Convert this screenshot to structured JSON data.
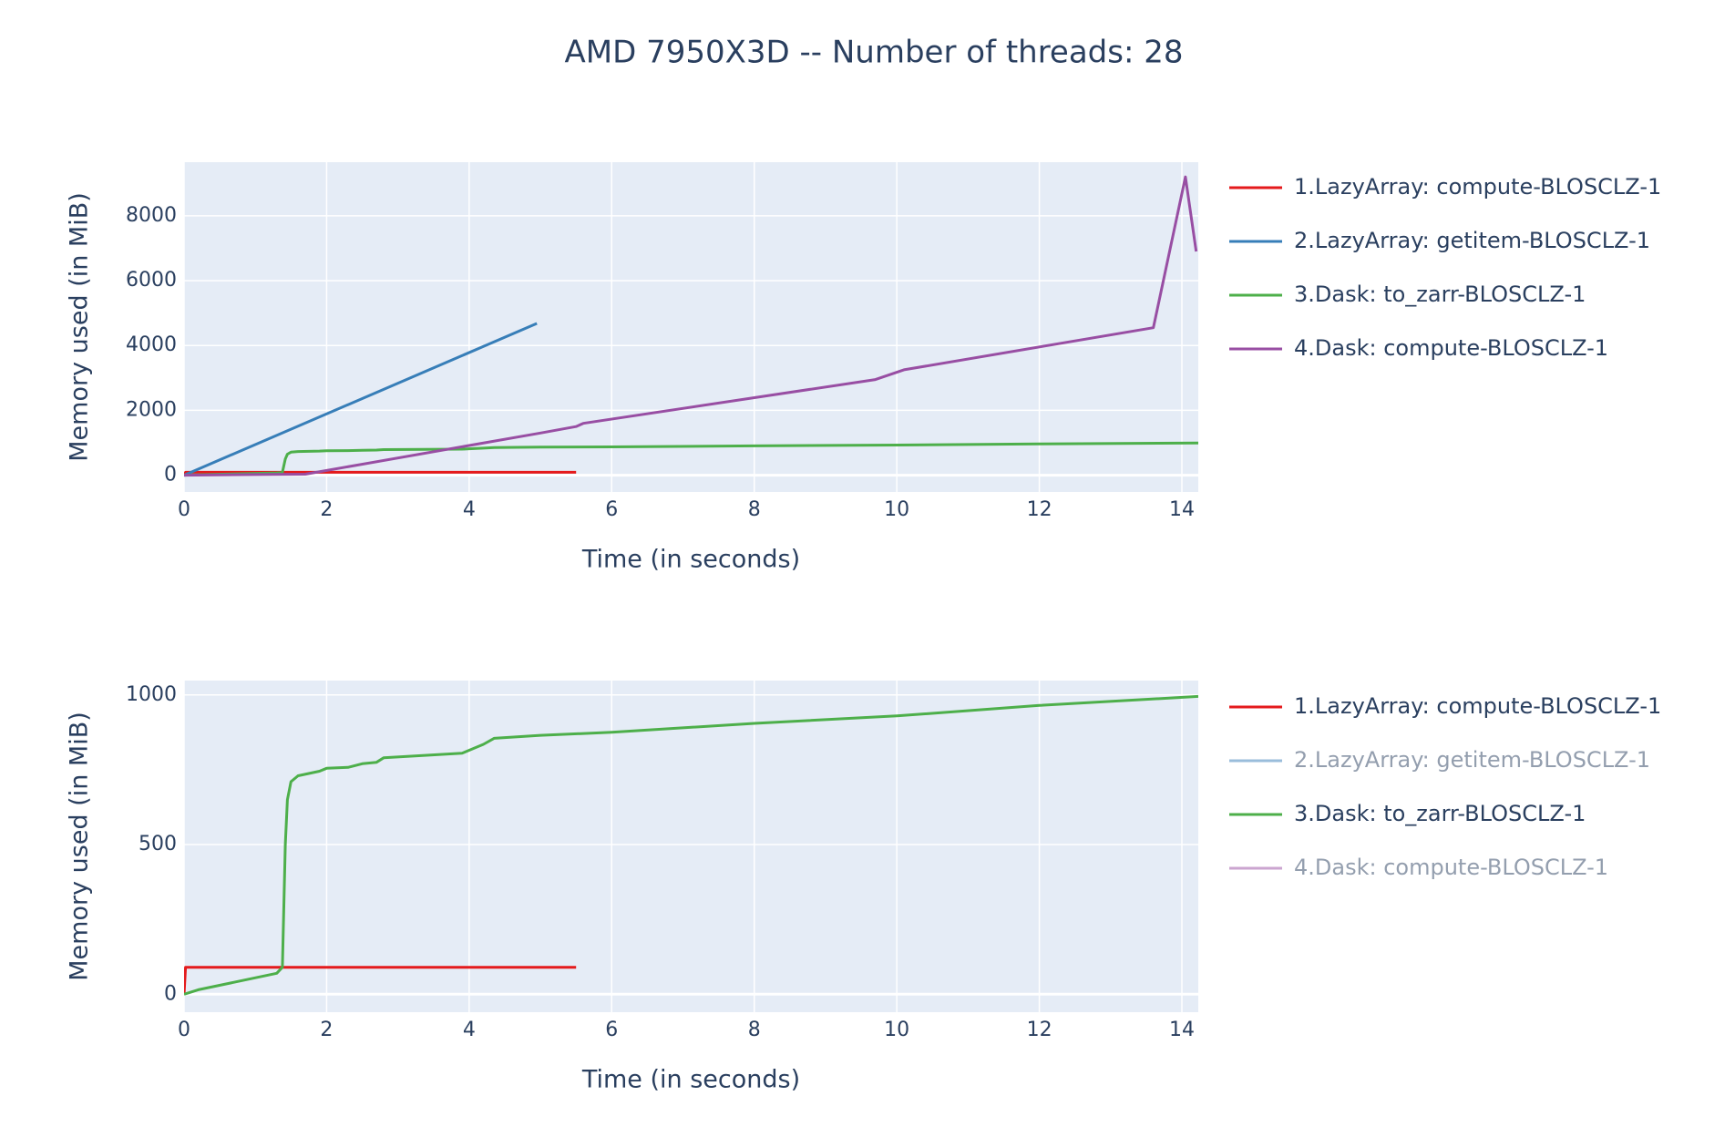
{
  "title": "AMD 7950X3D -- Number of threads: 28",
  "chart_data": [
    {
      "type": "line",
      "xlabel": "Time (in seconds)",
      "ylabel": "Memory used (in MiB)",
      "xlim": [
        0,
        14.23
      ],
      "ylim": [
        -517,
        9655
      ],
      "xticks": [
        0,
        2,
        4,
        6,
        8,
        10,
        12,
        14
      ],
      "yticks": [
        0,
        2000,
        4000,
        6000,
        8000
      ],
      "grid": true,
      "series": [
        {
          "name": "1.LazyArray: compute-BLOSCLZ-1",
          "color": "#e41a1c",
          "visible": true,
          "x": [
            0,
            0.02,
            5.5
          ],
          "values": [
            0,
            90,
            90
          ]
        },
        {
          "name": "2.LazyArray: getitem-BLOSCLZ-1",
          "color": "#377eb8",
          "visible": true,
          "x": [
            0,
            4.95
          ],
          "values": [
            0,
            4680
          ]
        },
        {
          "name": "3.Dask: to_zarr-BLOSCLZ-1",
          "color": "#4daf4a",
          "visible": true,
          "x": [
            0,
            0.2,
            1.3,
            1.38,
            1.42,
            1.45,
            1.5,
            1.6,
            1.9,
            2,
            2.3,
            2.5,
            2.7,
            2.8,
            3.9,
            4.0,
            4.2,
            4.35,
            5,
            6,
            8,
            10,
            12,
            14.23
          ],
          "values": [
            0,
            15,
            70,
            90,
            500,
            650,
            710,
            730,
            745,
            755,
            758,
            770,
            775,
            790,
            805,
            815,
            835,
            855,
            865,
            875,
            905,
            930,
            965,
            995
          ]
        },
        {
          "name": "4.Dask: compute-BLOSCLZ-1",
          "color": "#984ea3",
          "visible": true,
          "x": [
            0,
            1.7,
            5,
            5.5,
            5.6,
            9.7,
            10.1,
            13.6,
            14.05,
            14.2
          ],
          "values": [
            0,
            30,
            1300,
            1500,
            1600,
            2950,
            3250,
            4550,
            9200,
            6900
          ]
        }
      ]
    },
    {
      "type": "line",
      "xlabel": "Time (in seconds)",
      "ylabel": "Memory used (in MiB)",
      "xlim": [
        0,
        14.23
      ],
      "ylim": [
        -60,
        1048
      ],
      "xticks": [
        0,
        2,
        4,
        6,
        8,
        10,
        12,
        14
      ],
      "yticks": [
        0,
        500,
        1000
      ],
      "grid": true,
      "series": [
        {
          "name": "1.LazyArray: compute-BLOSCLZ-1",
          "color": "#e41a1c",
          "visible": true,
          "x": [
            0,
            0.02,
            5.5
          ],
          "values": [
            0,
            90,
            90
          ]
        },
        {
          "name": "2.LazyArray: getitem-BLOSCLZ-1",
          "color": "#377eb8",
          "visible": false
        },
        {
          "name": "3.Dask: to_zarr-BLOSCLZ-1",
          "color": "#4daf4a",
          "visible": true,
          "x": [
            0,
            0.2,
            1.3,
            1.38,
            1.42,
            1.45,
            1.5,
            1.6,
            1.9,
            2,
            2.3,
            2.5,
            2.7,
            2.8,
            3.9,
            4.0,
            4.2,
            4.35,
            5,
            6,
            8,
            10,
            12,
            14.23
          ],
          "values": [
            0,
            15,
            70,
            90,
            500,
            650,
            710,
            730,
            745,
            755,
            758,
            770,
            775,
            790,
            805,
            815,
            835,
            855,
            865,
            875,
            905,
            930,
            965,
            995
          ]
        },
        {
          "name": "4.Dask: compute-BLOSCLZ-1",
          "color": "#984ea3",
          "visible": false
        }
      ]
    }
  ]
}
